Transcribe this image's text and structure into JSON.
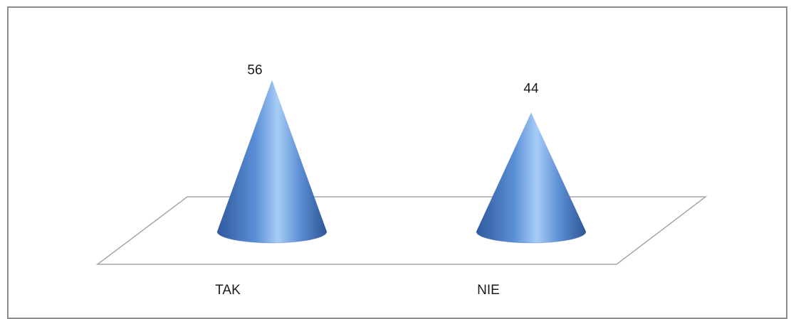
{
  "chart_data": {
    "type": "bar",
    "style": "3d-cone",
    "categories": [
      "TAK",
      "NIE"
    ],
    "values": [
      56,
      44
    ],
    "data_labels": [
      "56",
      "44"
    ],
    "ylim": [
      0,
      60
    ],
    "grid": false,
    "legend": "none",
    "colors": {
      "cone_dark": "#3a64a8",
      "cone_mid": "#5b8fd6",
      "cone_light": "#9cc4f2",
      "floor_line": "#a6a6a6",
      "frame": "#8c8c8c"
    }
  }
}
